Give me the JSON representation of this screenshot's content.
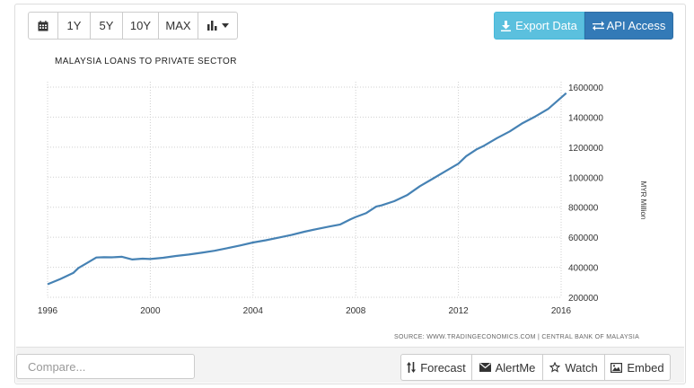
{
  "toolbar": {
    "ranges": [
      "1Y",
      "5Y",
      "10Y",
      "MAX"
    ],
    "export_label": "Export Data",
    "api_label": "API Access"
  },
  "chart_data": {
    "type": "line",
    "title": "MALAYSIA LOANS TO PRIVATE SECTOR",
    "ylabel": "MYR Million",
    "xlim": [
      1996,
      2016
    ],
    "ylim": [
      200000,
      1600000
    ],
    "x_ticks": [
      "1996",
      "2000",
      "2004",
      "2008",
      "2012",
      "2016"
    ],
    "y_ticks": [
      "1600000",
      "1400000",
      "1200000",
      "1000000",
      "800000",
      "600000",
      "400000",
      "200000"
    ],
    "grid": true,
    "axis_side": "right",
    "x": [
      1996.0,
      1996.5,
      1997.0,
      1997.2,
      1997.5,
      1997.9,
      1998.2,
      1998.5,
      1998.9,
      1999.3,
      1999.7,
      2000.0,
      2000.5,
      2001.0,
      2001.5,
      2002.0,
      2002.5,
      2003.0,
      2003.5,
      2004.0,
      2004.5,
      2005.0,
      2005.5,
      2006.0,
      2006.5,
      2007.0,
      2007.4,
      2007.8,
      2008.0,
      2008.4,
      2008.8,
      2009.0,
      2009.5,
      2010.0,
      2010.5,
      2011.0,
      2011.5,
      2012.0,
      2012.3,
      2012.7,
      2013.0,
      2013.5,
      2014.0,
      2014.5,
      2015.0,
      2015.5,
      2016.0,
      2016.2
    ],
    "values": [
      287000,
      322000,
      362000,
      395000,
      425000,
      465000,
      467000,
      466000,
      470000,
      452000,
      457000,
      455000,
      463000,
      475000,
      485000,
      497000,
      510000,
      527000,
      545000,
      565000,
      580000,
      597000,
      615000,
      637000,
      655000,
      672000,
      685000,
      720000,
      735000,
      760000,
      805000,
      812000,
      840000,
      880000,
      940000,
      990000,
      1040000,
      1090000,
      1140000,
      1185000,
      1210000,
      1260000,
      1305000,
      1360000,
      1405000,
      1455000,
      1530000,
      1560000
    ]
  },
  "source_text": "SOURCE: WWW.TRADINGECONOMICS.COM | CENTRAL BANK OF MALAYSIA",
  "compare": {
    "placeholder": "Compare..."
  },
  "actions": {
    "forecast": "Forecast",
    "alert": "AlertMe",
    "watch": "Watch",
    "embed": "Embed"
  }
}
